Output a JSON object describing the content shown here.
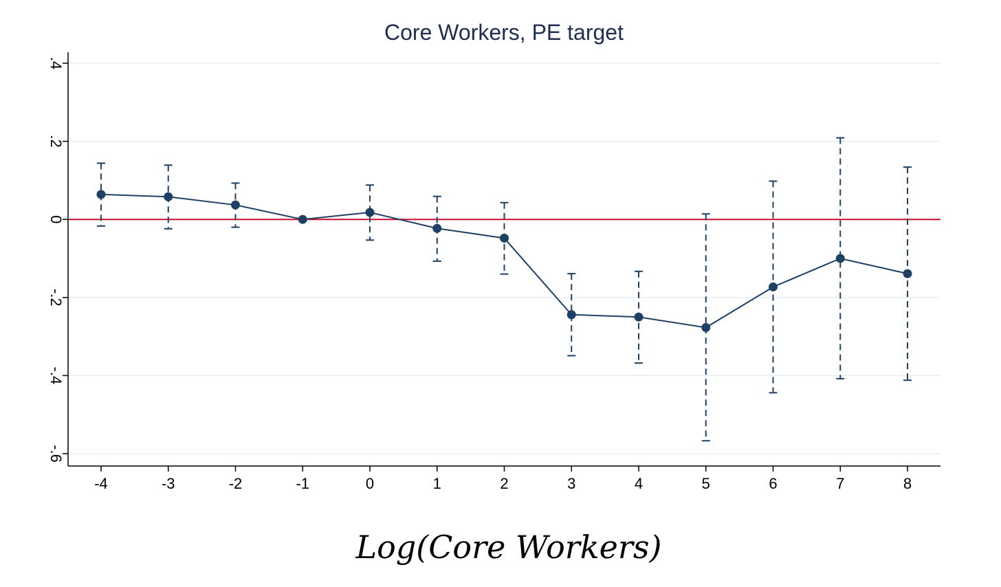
{
  "chart_data": {
    "type": "line",
    "title": "Core Workers, PE target",
    "xlabel": "Log(Core Workers)",
    "ylabel": "",
    "x": [
      -4,
      -3,
      -2,
      -1,
      0,
      1,
      2,
      3,
      4,
      5,
      6,
      7,
      8
    ],
    "xlim": [
      -4.5,
      8.5
    ],
    "ylim": [
      -0.63,
      0.43
    ],
    "x_ticks": [
      -4,
      -3,
      -2,
      -1,
      0,
      1,
      2,
      3,
      4,
      5,
      6,
      7,
      8
    ],
    "x_tick_labels": [
      "-4",
      "-3",
      "-2",
      "-1",
      "0",
      "1",
      "2",
      "3",
      "4",
      "5",
      "6",
      "7",
      "8"
    ],
    "y_ticks": [
      0.4,
      0.2,
      0,
      -0.2,
      -0.4,
      -0.6
    ],
    "y_tick_labels": [
      ".4",
      ".2",
      "0",
      "-.2",
      "-.4",
      "-.6"
    ],
    "grid": true,
    "series": [
      {
        "values": [
          0.064,
          0.058,
          0.037,
          0.0,
          0.018,
          -0.023,
          -0.048,
          -0.244,
          -0.25,
          -0.277,
          -0.173,
          -0.1,
          -0.139
        ],
        "ci_lower": [
          -0.017,
          -0.024,
          -0.02,
          0.0,
          -0.053,
          -0.107,
          -0.14,
          -0.349,
          -0.368,
          -0.567,
          -0.444,
          -0.408,
          -0.412
        ],
        "ci_upper": [
          0.144,
          0.139,
          0.093,
          0.0,
          0.088,
          0.059,
          0.043,
          -0.139,
          -0.133,
          0.014,
          0.098,
          0.209,
          0.134
        ]
      }
    ],
    "reference_line": {
      "y": 0
    },
    "colors": {
      "series": "#1f3f63",
      "reference": "#c8102e",
      "grid": "#e8eff3",
      "title": "#1f2d4e"
    }
  }
}
